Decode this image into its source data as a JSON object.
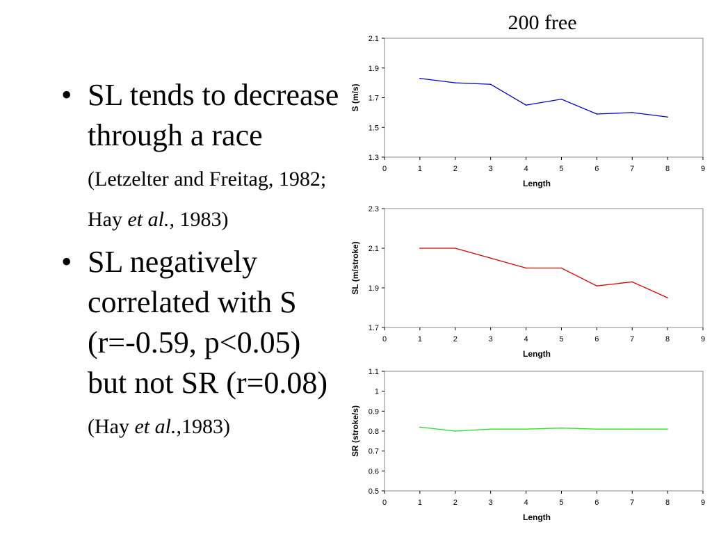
{
  "slide": {
    "bullets": [
      {
        "main": "SL tends to decrease through a race",
        "cite_a": "(Letzelter and Freitag, 1982; Hay ",
        "cite_em": "et al.,",
        "cite_b": " 1983)"
      },
      {
        "main": "SL negatively correlated with S (r=-0.59, p<0.05) but not SR (r=0.08)",
        "cite_a": "(Hay ",
        "cite_em": "et al.",
        "cite_b": ",1983)"
      }
    ]
  },
  "chart_data": [
    {
      "type": "line",
      "title": "200 free",
      "xlabel": "Length",
      "ylabel": "S (m/s)",
      "xlim": [
        0,
        9
      ],
      "ylim": [
        1.3,
        2.1
      ],
      "xticks": [
        "0",
        "1",
        "2",
        "3",
        "4",
        "5",
        "6",
        "7",
        "8",
        "9"
      ],
      "yticks": [
        "1.3",
        "1.5",
        "1.7",
        "1.9",
        "2.1"
      ],
      "yticks_values": [
        1.3,
        1.5,
        1.7,
        1.9,
        2.1
      ],
      "color": "#0000cc",
      "series": [
        {
          "x": [
            1,
            2,
            3,
            4,
            5,
            6,
            7,
            8
          ],
          "values": [
            1.83,
            1.8,
            1.79,
            1.65,
            1.69,
            1.59,
            1.6,
            1.57
          ]
        }
      ]
    },
    {
      "type": "line",
      "xlabel": "Length",
      "ylabel": "SL (m/stroke)",
      "xlim": [
        0,
        9
      ],
      "ylim": [
        1.7,
        2.3
      ],
      "xticks": [
        "0",
        "1",
        "2",
        "3",
        "4",
        "5",
        "6",
        "7",
        "8",
        "9"
      ],
      "yticks": [
        "1.7",
        "1.9",
        "2.1",
        "2.3"
      ],
      "yticks_values": [
        1.7,
        1.9,
        2.1,
        2.3
      ],
      "color": "#dd0000",
      "series": [
        {
          "x": [
            1,
            2,
            3,
            4,
            5,
            6,
            7,
            8
          ],
          "values": [
            2.1,
            2.1,
            2.05,
            2.0,
            2.0,
            1.91,
            1.93,
            1.85
          ]
        }
      ]
    },
    {
      "type": "line",
      "xlabel": "Length",
      "ylabel": "SR (stroke/s)",
      "xlim": [
        0,
        9
      ],
      "ylim": [
        0.5,
        1.1
      ],
      "xticks": [
        "0",
        "1",
        "2",
        "3",
        "4",
        "5",
        "6",
        "7",
        "8",
        "9"
      ],
      "yticks": [
        "0.5",
        "0.6",
        "0.7",
        "0.8",
        "0.9",
        "1",
        "1.1"
      ],
      "yticks_values": [
        0.5,
        0.6,
        0.7,
        0.8,
        0.9,
        1.0,
        1.1
      ],
      "color": "#22dd22",
      "series": [
        {
          "x": [
            1,
            2,
            3,
            4,
            5,
            6,
            7,
            8
          ],
          "values": [
            0.82,
            0.8,
            0.81,
            0.81,
            0.815,
            0.81,
            0.81,
            0.81
          ]
        }
      ]
    }
  ]
}
